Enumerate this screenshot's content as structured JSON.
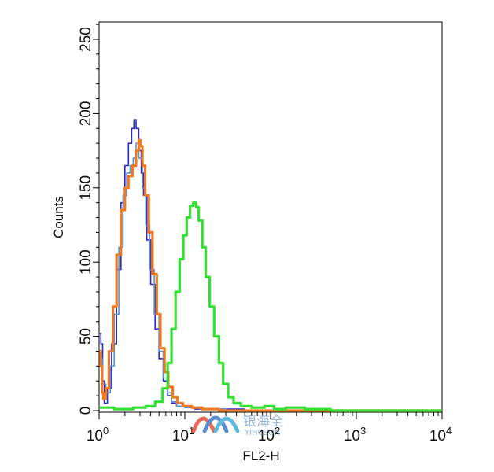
{
  "chart_data": {
    "type": "line",
    "xlabel": "FL2-H",
    "ylabel": "Counts",
    "x_scale": "log",
    "xlim": [
      1,
      10000
    ],
    "ylim": [
      0,
      260
    ],
    "x_ticks": [
      {
        "base": "10",
        "exp": "0",
        "value": 1
      },
      {
        "base": "10",
        "exp": "1",
        "value": 10
      },
      {
        "base": "10",
        "exp": "2",
        "value": 100
      },
      {
        "base": "10",
        "exp": "3",
        "value": 1000
      },
      {
        "base": "10",
        "exp": "4",
        "value": 10000
      }
    ],
    "y_ticks": [
      0,
      50,
      100,
      150,
      200,
      250
    ],
    "grid": false,
    "series": [
      {
        "color": "#2a2acc",
        "stroke_width": 1.6,
        "points": [
          [
            1.0,
            52
          ],
          [
            1.05,
            45
          ],
          [
            1.1,
            20
          ],
          [
            1.15,
            5
          ],
          [
            1.25,
            15
          ],
          [
            1.4,
            45
          ],
          [
            1.6,
            95
          ],
          [
            1.8,
            140
          ],
          [
            2.0,
            165
          ],
          [
            2.2,
            180
          ],
          [
            2.4,
            190
          ],
          [
            2.55,
            196
          ],
          [
            2.7,
            190
          ],
          [
            2.9,
            175
          ],
          [
            3.1,
            160
          ],
          [
            3.3,
            145
          ],
          [
            3.6,
            115
          ],
          [
            4.0,
            85
          ],
          [
            4.5,
            55
          ],
          [
            5.0,
            35
          ],
          [
            5.6,
            20
          ],
          [
            6.3,
            10
          ],
          [
            7.0,
            5
          ],
          [
            8.0,
            3
          ],
          [
            10,
            2
          ],
          [
            13,
            1
          ],
          [
            20,
            1
          ],
          [
            50,
            0
          ],
          [
            10000,
            0
          ]
        ]
      },
      {
        "color": "#5a8fd0",
        "stroke_width": 1.6,
        "points": [
          [
            1.0,
            40
          ],
          [
            1.05,
            35
          ],
          [
            1.1,
            18
          ],
          [
            1.2,
            12
          ],
          [
            1.35,
            30
          ],
          [
            1.5,
            65
          ],
          [
            1.7,
            110
          ],
          [
            1.9,
            145
          ],
          [
            2.1,
            160
          ],
          [
            2.3,
            165
          ],
          [
            2.5,
            170
          ],
          [
            2.7,
            180
          ],
          [
            2.9,
            170
          ],
          [
            3.2,
            150
          ],
          [
            3.5,
            125
          ],
          [
            3.9,
            95
          ],
          [
            4.4,
            65
          ],
          [
            5.0,
            40
          ],
          [
            5.6,
            22
          ],
          [
            6.3,
            12
          ],
          [
            7.0,
            6
          ],
          [
            8.0,
            3
          ],
          [
            10,
            2
          ],
          [
            15,
            1
          ],
          [
            30,
            0
          ],
          [
            10000,
            0
          ]
        ]
      },
      {
        "color": "#f07a22",
        "stroke_width": 3.2,
        "points": [
          [
            1.0,
            40
          ],
          [
            1.04,
            30
          ],
          [
            1.08,
            12
          ],
          [
            1.12,
            8
          ],
          [
            1.2,
            15
          ],
          [
            1.3,
            40
          ],
          [
            1.45,
            70
          ],
          [
            1.6,
            105
          ],
          [
            1.8,
            135
          ],
          [
            2.0,
            150
          ],
          [
            2.2,
            158
          ],
          [
            2.45,
            165
          ],
          [
            2.7,
            175
          ],
          [
            2.9,
            182
          ],
          [
            3.05,
            178
          ],
          [
            3.2,
            165
          ],
          [
            3.45,
            145
          ],
          [
            3.8,
            120
          ],
          [
            4.2,
            92
          ],
          [
            4.7,
            65
          ],
          [
            5.2,
            42
          ],
          [
            5.8,
            26
          ],
          [
            6.4,
            16
          ],
          [
            7.2,
            9
          ],
          [
            8.2,
            5
          ],
          [
            9.5,
            3
          ],
          [
            12,
            2
          ],
          [
            16,
            1
          ],
          [
            25,
            0
          ],
          [
            10000,
            0
          ]
        ]
      },
      {
        "color": "#33e033",
        "stroke_width": 3.2,
        "points": [
          [
            1.0,
            2
          ],
          [
            1.5,
            1
          ],
          [
            2.5,
            2
          ],
          [
            3.5,
            3
          ],
          [
            4.5,
            6
          ],
          [
            5.5,
            15
          ],
          [
            6.3,
            32
          ],
          [
            7.0,
            55
          ],
          [
            7.8,
            80
          ],
          [
            8.7,
            102
          ],
          [
            9.6,
            118
          ],
          [
            10.5,
            130
          ],
          [
            11.5,
            138
          ],
          [
            12.5,
            140
          ],
          [
            13.5,
            137
          ],
          [
            14.5,
            128
          ],
          [
            16.0,
            110
          ],
          [
            17.5,
            90
          ],
          [
            19.5,
            70
          ],
          [
            22,
            50
          ],
          [
            25,
            32
          ],
          [
            28,
            18
          ],
          [
            32,
            9
          ],
          [
            37,
            5
          ],
          [
            45,
            3
          ],
          [
            60,
            2
          ],
          [
            85,
            3
          ],
          [
            110,
            1
          ],
          [
            150,
            2
          ],
          [
            250,
            1
          ],
          [
            500,
            0
          ],
          [
            10000,
            0
          ]
        ]
      }
    ]
  },
  "watermark": {
    "chinese_text": "银海全",
    "latin_text": "YIHCSON",
    "logo_colors": [
      "#e8503a",
      "#3a78c8",
      "#42b0d8"
    ]
  }
}
